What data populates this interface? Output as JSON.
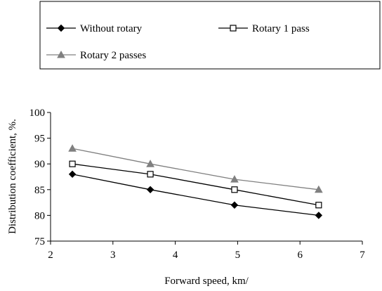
{
  "chart_data": {
    "type": "line",
    "title": "",
    "xlabel": "Forward speed, km/",
    "ylabel": "Distribution coefficient, %.",
    "xlim": [
      2,
      7
    ],
    "ylim": [
      75,
      100
    ],
    "x_ticks": [
      "2",
      "3",
      "4",
      "5",
      "6",
      "7"
    ],
    "y_ticks": [
      "75",
      "80",
      "85",
      "90",
      "95",
      "100"
    ],
    "grid": false,
    "legend_position": "top",
    "x": [
      2.35,
      3.6,
      4.95,
      6.3
    ],
    "series": [
      {
        "name": "Without rotary",
        "marker": "diamond-filled",
        "color": "#000000",
        "values": [
          88,
          85,
          82,
          80
        ]
      },
      {
        "name": "Rotary 1 pass",
        "marker": "square-open",
        "color": "#000000",
        "values": [
          90,
          88,
          85,
          82
        ]
      },
      {
        "name": "Rotary 2 passes",
        "marker": "triangle-filled",
        "color": "#808080",
        "values": [
          93,
          90,
          87,
          85
        ]
      }
    ]
  }
}
